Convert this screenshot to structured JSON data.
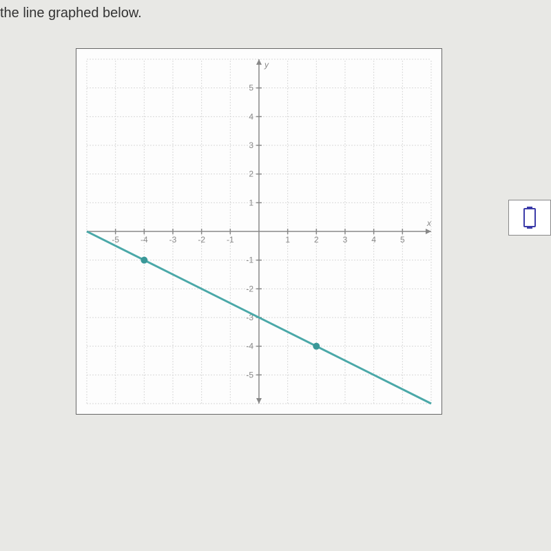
{
  "title": "the line graphed below.",
  "chart": {
    "type": "line",
    "background_color": "#fdfdfd",
    "border_color": "#666666",
    "grid_color": "#d8d8d8",
    "axis_color": "#888888",
    "tick_color": "#888888",
    "tick_fontsize": 12,
    "xlabel": "x",
    "ylabel": "y",
    "label_fontsize": 12,
    "xlim": [
      -6,
      6
    ],
    "ylim": [
      -6,
      6
    ],
    "xticks": [
      -5,
      -4,
      -3,
      -2,
      -1,
      1,
      2,
      3,
      4,
      5
    ],
    "yticks": [
      -5,
      -4,
      -3,
      -2,
      -1,
      1,
      2,
      3,
      4,
      5
    ],
    "line": {
      "color": "#4aa8a8",
      "width": 3,
      "p1": {
        "x": -6,
        "y": 0
      },
      "p2": {
        "x": 6,
        "y": -6
      }
    },
    "points": [
      {
        "x": -4,
        "y": -1,
        "color": "#3a9898",
        "radius": 5
      },
      {
        "x": 2,
        "y": -4,
        "color": "#3a9898",
        "radius": 5
      }
    ]
  },
  "answer_box": {
    "icon_color": "#3a3aa8"
  }
}
